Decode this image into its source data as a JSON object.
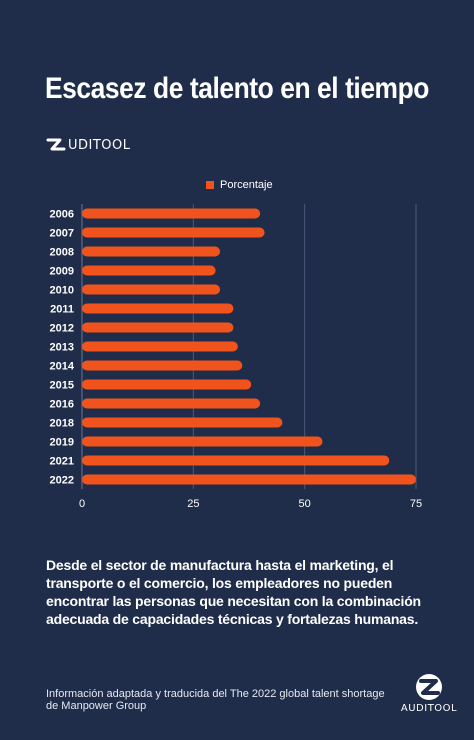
{
  "title": "Escasez de talento en el tiempo",
  "brand": {
    "name": "AUDITOOL",
    "name_top": "UDITOOL"
  },
  "chart_data": {
    "type": "bar",
    "orientation": "horizontal",
    "categories": [
      "2006",
      "2007",
      "2008",
      "2009",
      "2010",
      "2011",
      "2012",
      "2013",
      "2014",
      "2015",
      "2016",
      "2018",
      "2019",
      "2021",
      "2022"
    ],
    "series": [
      {
        "name": "Porcentaje",
        "values": [
          40,
          41,
          31,
          30,
          31,
          34,
          34,
          35,
          36,
          38,
          40,
          45,
          54,
          69,
          75
        ]
      }
    ],
    "xlim": [
      0,
      75
    ],
    "xticks": [
      0,
      25,
      50,
      75
    ],
    "xlabel": "",
    "ylabel": "",
    "grid": true,
    "legend": "top",
    "colors": {
      "bar": "#f0531c",
      "grid": "#4a5a78",
      "background": "#1f2d4a"
    }
  },
  "description": "Desde el sector de manufactura hasta el marketing, el transporte o el comercio, los empleadores no pueden encontrar las personas que necesitan con la combinación adecuada de capacidades técnicas y fortalezas humanas.",
  "source": "Información adaptada y traducida del The 2022 global talent shortage de Manpower Group"
}
